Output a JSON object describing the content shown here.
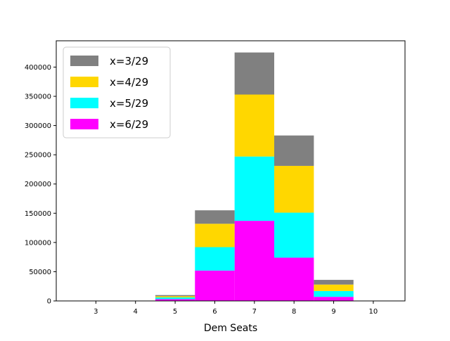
{
  "chart_data": {
    "type": "bar",
    "stacked": true,
    "title": "",
    "xlabel": "Dem Seats",
    "ylabel": "",
    "categories": [
      "3",
      "4",
      "5",
      "6",
      "7",
      "8",
      "9",
      "10"
    ],
    "x_values": [
      3,
      4,
      5,
      6,
      7,
      8,
      9,
      10
    ],
    "xlim": [
      2,
      10.8
    ],
    "ylim": [
      0,
      445000
    ],
    "x_ticks": [
      3,
      4,
      5,
      6,
      7,
      8,
      9,
      10
    ],
    "y_ticks": [
      0,
      50000,
      100000,
      150000,
      200000,
      250000,
      300000,
      350000,
      400000
    ],
    "grid": false,
    "legend_position": "top-left",
    "series": [
      {
        "name": "x=6/29",
        "color": "#ff00ff",
        "values": [
          0,
          0,
          3000,
          52000,
          137000,
          74000,
          7000,
          0
        ]
      },
      {
        "name": "x=5/29",
        "color": "#00ffff",
        "values": [
          0,
          0,
          3000,
          40000,
          110000,
          77000,
          10000,
          0
        ]
      },
      {
        "name": "x=4/29",
        "color": "#ffd700",
        "values": [
          0,
          0,
          2000,
          40000,
          106000,
          80000,
          11000,
          0
        ]
      },
      {
        "name": "x=3/29",
        "color": "#808080",
        "values": [
          0,
          0,
          2000,
          23000,
          72000,
          52000,
          8000,
          0
        ]
      }
    ],
    "legend_order": [
      "x=3/29",
      "x=4/29",
      "x=5/29",
      "x=6/29"
    ]
  }
}
